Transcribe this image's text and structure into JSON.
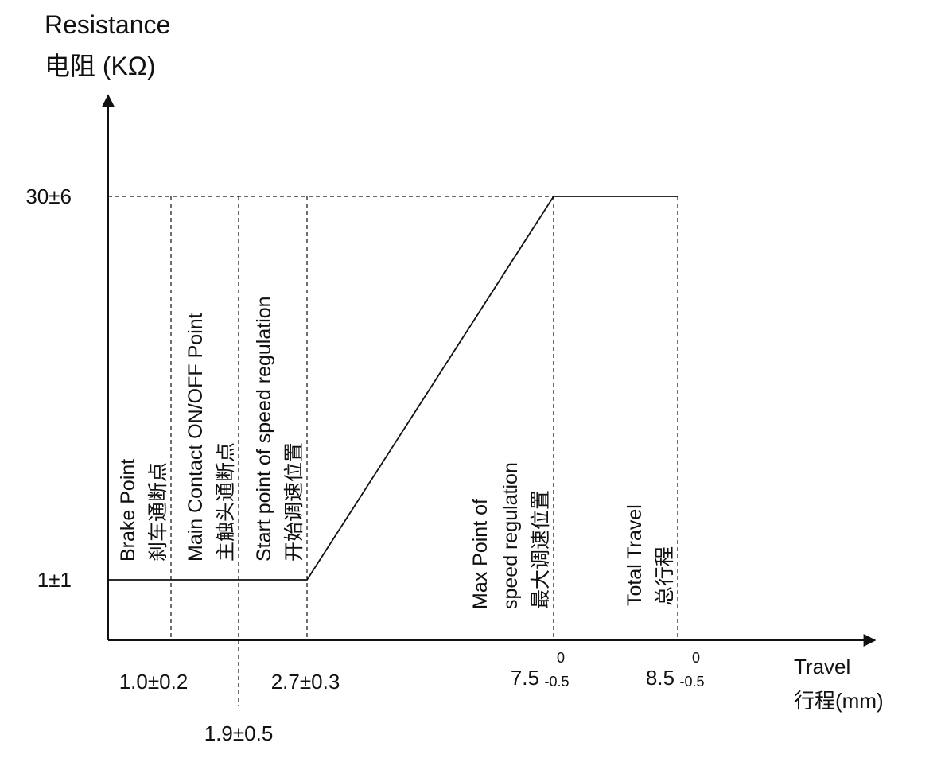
{
  "chart_data": {
    "type": "line",
    "y_axis": {
      "label_en": "Resistance",
      "label_zh": "电阻 (KΩ)"
    },
    "x_axis": {
      "label_en": "Travel",
      "label_zh": "行程(mm)"
    },
    "y_ticks": [
      {
        "value": 1,
        "label": "1±1"
      },
      {
        "value": 30,
        "label": "30±6"
      }
    ],
    "x_ticks": [
      {
        "value": 1.0,
        "label": "1.0±0.2"
      },
      {
        "value": 1.9,
        "label": "1.9±0.5"
      },
      {
        "value": 2.7,
        "label": "2.7±0.3"
      },
      {
        "value": 7.5,
        "label": "7.5",
        "tol_upper": "0",
        "tol_lower": "-0.5"
      },
      {
        "value": 8.5,
        "label": "8.5",
        "tol_upper": "0",
        "tol_lower": "-0.5"
      }
    ],
    "series": [
      {
        "x": [
          0,
          1.0,
          1.9,
          2.7,
          7.5,
          8.5
        ],
        "y": [
          1,
          1,
          1,
          1,
          30,
          30
        ]
      }
    ],
    "markers": [
      {
        "x": 1.0,
        "lines": [
          "Brake Point",
          "刹车通断点"
        ]
      },
      {
        "x": 1.9,
        "lines": [
          "Main Contact ON/OFF Point",
          "主触头通断点"
        ]
      },
      {
        "x": 2.7,
        "lines": [
          "Start point of speed regulation",
          "开始调速位置"
        ]
      },
      {
        "x": 7.5,
        "lines": [
          "Max Point of",
          "speed regulation",
          "最大调速位置"
        ]
      },
      {
        "x": 8.5,
        "lines": [
          "Total Travel",
          "总行程"
        ]
      }
    ]
  }
}
